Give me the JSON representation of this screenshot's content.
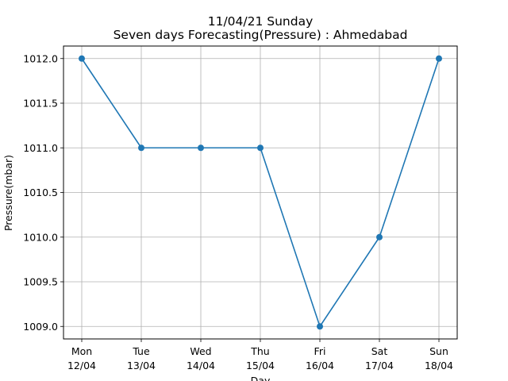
{
  "chart_data": {
    "type": "line",
    "title": "11/04/21 Sunday",
    "subtitle": "Seven days Forecasting(Pressure) : Ahmedabad",
    "xlabel": "Day",
    "ylabel": "Pressure(mbar)",
    "categories": [
      {
        "day": "Mon",
        "date": "12/04"
      },
      {
        "day": "Tue",
        "date": "13/04"
      },
      {
        "day": "Wed",
        "date": "14/04"
      },
      {
        "day": "Thu",
        "date": "15/04"
      },
      {
        "day": "Fri",
        "date": "16/04"
      },
      {
        "day": "Sat",
        "date": "17/04"
      },
      {
        "day": "Sun",
        "date": "18/04"
      }
    ],
    "series": [
      {
        "values": [
          1012.0,
          1011.0,
          1011.0,
          1011.0,
          1009.0,
          1010.0,
          1012.0
        ],
        "color": "#1f77b4",
        "marker": "circle"
      }
    ],
    "yticks": [
      "1009.0",
      "1009.5",
      "1010.0",
      "1010.5",
      "1011.0",
      "1011.5",
      "1012.0"
    ],
    "ylim": [
      1008.86,
      1012.14
    ],
    "grid": true,
    "legend": "none"
  }
}
